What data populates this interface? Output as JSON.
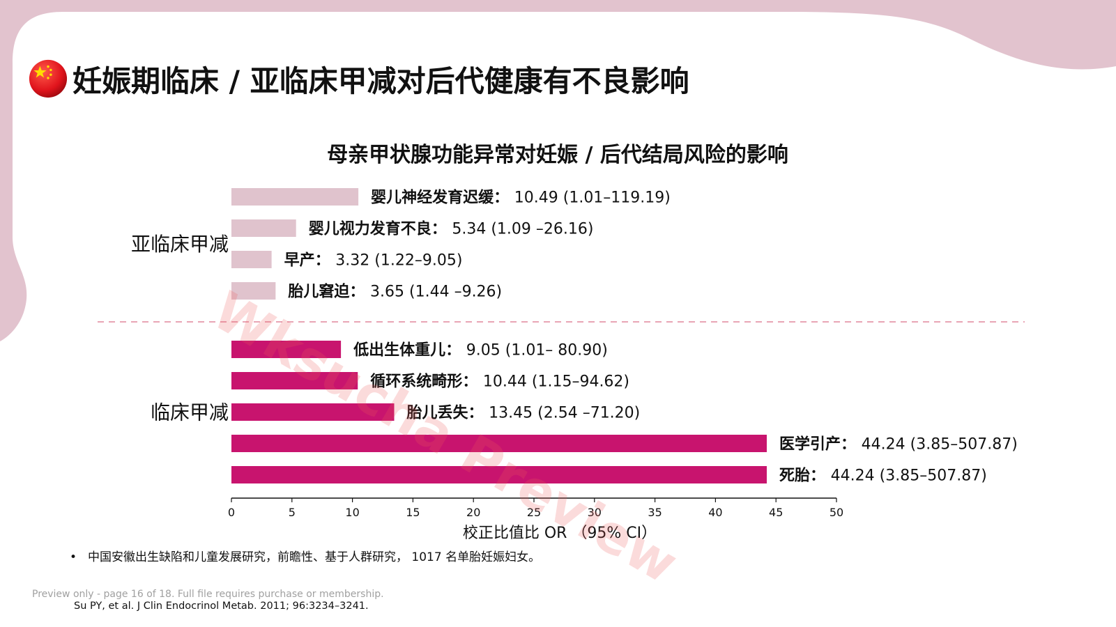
{
  "page": {
    "title": "妊娠期临床 / 亚临床甲减对后代健康有不良影响",
    "flag_icon": "china-flag-icon",
    "bullet": "中国安徽出生缺陷和儿童发展研究，前瞻性、基于人群研究， 1017 名单胎妊娠妇女。",
    "citation": "Su PY, et al. J Clin Endocrinol Metab. 2011; 96:3234–3241.",
    "preview_note": "Preview only - page 16 of 18. Full file requires purchase or membership.",
    "watermark": "Wksucha Preview",
    "accent_light": "#e0c3cd",
    "accent_dark": "#c8146e"
  },
  "chart_data": {
    "type": "bar",
    "orientation": "horizontal",
    "title": "母亲甲状腺功能异常对妊娠 / 后代结局风险的影响",
    "xlabel": "校正比值比 OR （95% CI）",
    "xlim": [
      0,
      50
    ],
    "xticks": [
      0,
      5,
      10,
      15,
      20,
      25,
      30,
      35,
      40,
      45,
      50
    ],
    "grid": false,
    "groups": [
      {
        "name": "亚临床甲减",
        "color": "#e0c3cd",
        "items": [
          {
            "label": "婴儿神经发育迟缓：",
            "value": 10.49,
            "ci": "10.49 (1.01–119.19)"
          },
          {
            "label": "婴儿视力发育不良：",
            "value": 5.34,
            "ci": "5.34 (1.09 –26.16)"
          },
          {
            "label": "早产：",
            "value": 3.32,
            "ci": "3.32 (1.22–9.05)"
          },
          {
            "label": "胎儿窘迫：",
            "value": 3.65,
            "ci": "3.65 (1.44 –9.26)"
          }
        ]
      },
      {
        "name": "临床甲减",
        "color": "#c8146e",
        "items": [
          {
            "label": "低出生体重儿：",
            "value": 9.05,
            "ci": "9.05 (1.01– 80.90)"
          },
          {
            "label": "循环系统畸形：",
            "value": 10.44,
            "ci": "10.44 (1.15–94.62)"
          },
          {
            "label": "胎儿丢失：",
            "value": 13.45,
            "ci": "13.45 (2.54 –71.20)"
          },
          {
            "label": "医学引产：",
            "value": 44.24,
            "ci": "44.24 (3.85–507.87)"
          },
          {
            "label": "死胎：",
            "value": 44.24,
            "ci": "44.24 (3.85–507.87)"
          }
        ]
      }
    ]
  }
}
